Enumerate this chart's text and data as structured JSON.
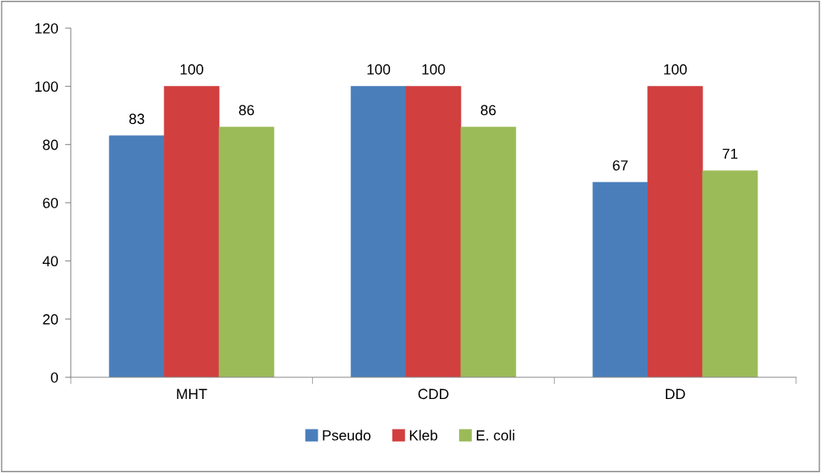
{
  "chart_data": {
    "type": "bar",
    "categories": [
      "MHT",
      "CDD",
      "DD"
    ],
    "series": [
      {
        "name": "Pseudo",
        "color": "#4a7ebb",
        "values": [
          83,
          100,
          67
        ]
      },
      {
        "name": "Kleb",
        "color": "#d13f3f",
        "values": [
          100,
          100,
          100
        ]
      },
      {
        "name": "E. coli",
        "color": "#9bbb59",
        "values": [
          86,
          86,
          71
        ]
      }
    ],
    "ylim": [
      0,
      120
    ],
    "yticks": [
      0,
      20,
      40,
      60,
      80,
      100,
      120
    ],
    "data_labels": true,
    "legend": "bottom",
    "grid": false
  }
}
